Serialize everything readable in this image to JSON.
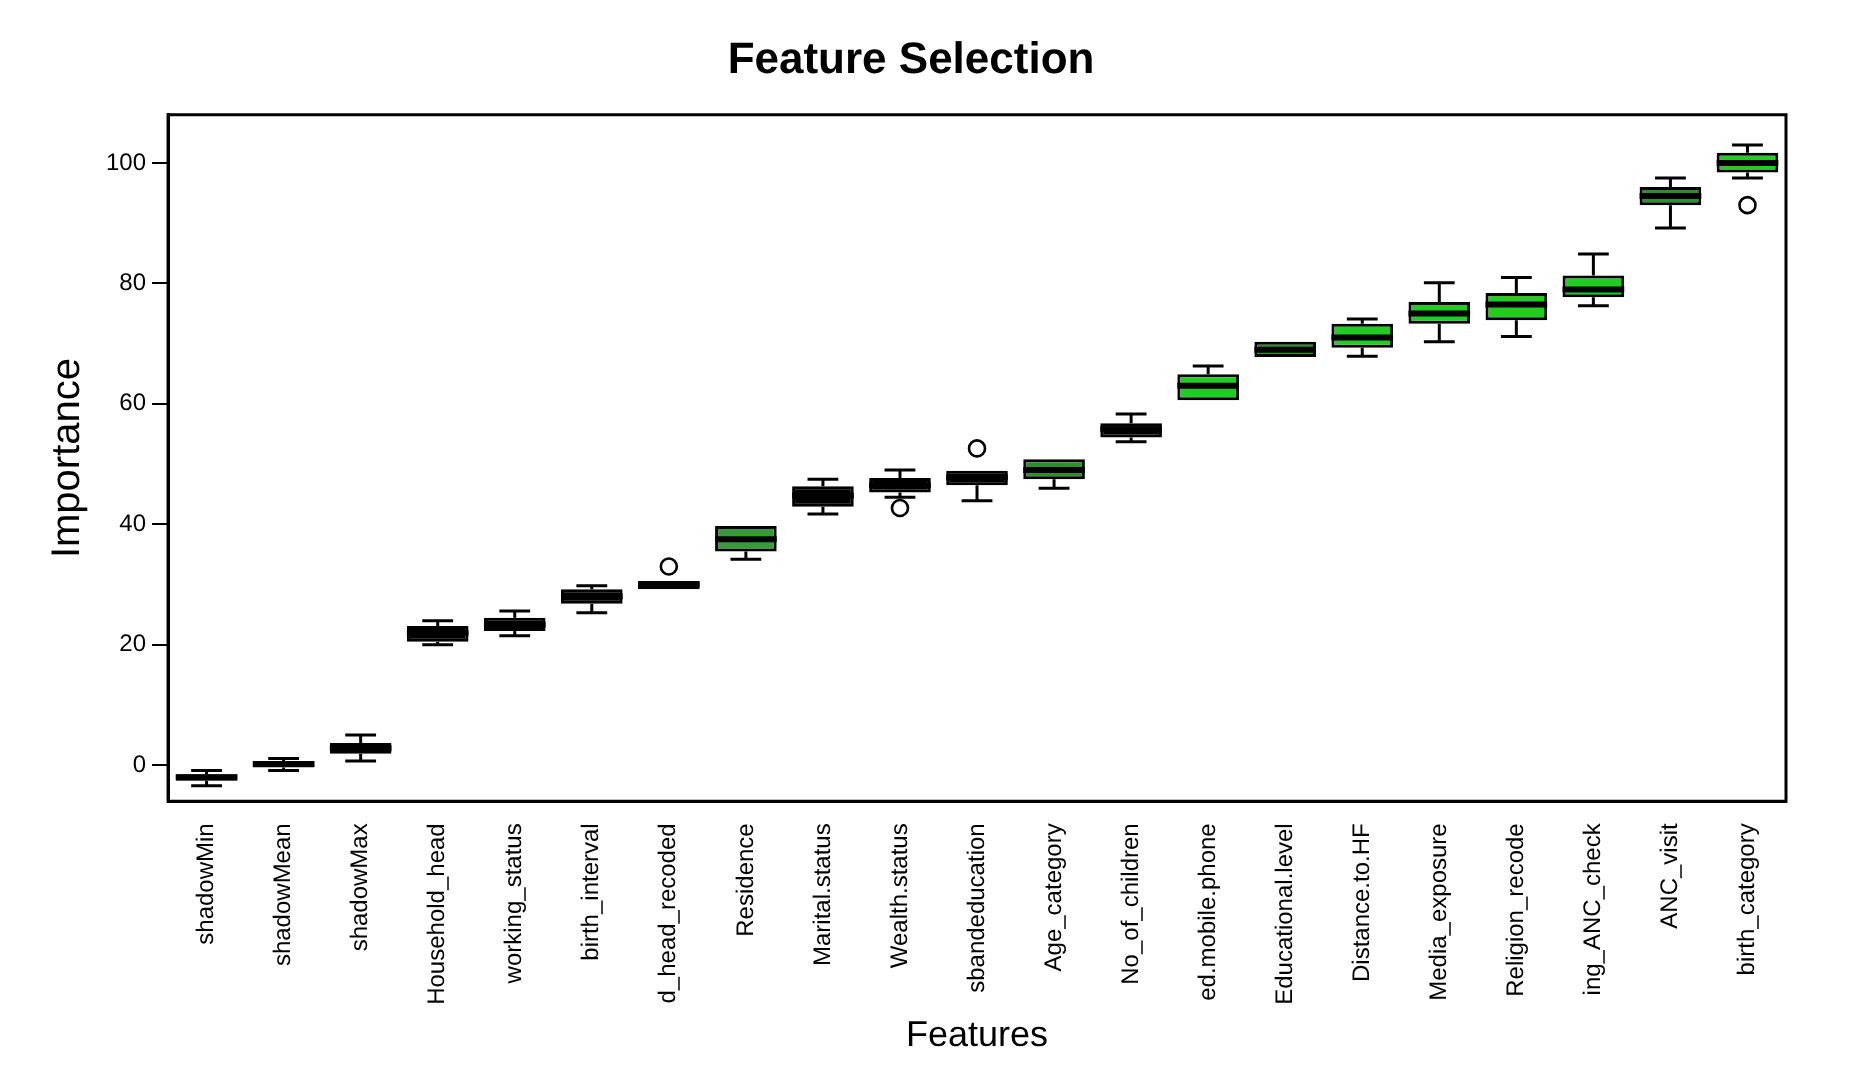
{
  "chart_data": {
    "type": "box",
    "title": "Feature Selection",
    "xlabel": "Features",
    "ylabel": "Importance",
    "categories": [
      "shadowMin",
      "shadowMean",
      "shadowMax",
      "Household_head",
      "working_status",
      "birth_interval",
      "d_head_recoded",
      "Residence",
      "Marital.status",
      "Wealth.status",
      "sbandeducation",
      "Age_category",
      "No_of_children",
      "ed.mobile.phone",
      "Educational.level",
      "Distance.to.HF",
      "Media_exposure",
      "Religion_recode",
      "ing_ANC_check",
      "ANC_visit",
      "birth_category"
    ],
    "colors": [
      "#000000",
      "#000000",
      "#000000",
      "#000000",
      "#000000",
      "#000000",
      "#000000",
      "#3a9a3a",
      "#000000",
      "#000000",
      "#000000",
      "#2f8f2f",
      "#000000",
      "#22cc22",
      "#2f8f2f",
      "#22cc22",
      "#22cc22",
      "#22cc22",
      "#22cc22",
      "#2f8f2f",
      "#22cc22"
    ],
    "boxes": [
      {
        "low": -3.4,
        "q1": -2.6,
        "median": -2,
        "q3": -1.5,
        "high": -0.9
      },
      {
        "low": -0.9,
        "q1": -0.4,
        "median": 0.2,
        "q3": 0.6,
        "high": 1.1
      },
      {
        "low": 0.7,
        "q1": 1.9,
        "median": 2.8,
        "q3": 3.7,
        "high": 5
      },
      {
        "low": 20,
        "q1": 20.5,
        "median": 22,
        "q3": 23.1,
        "high": 24
      },
      {
        "low": 21.5,
        "q1": 22.3,
        "median": 23.3,
        "q3": 24.5,
        "high": 25.6
      },
      {
        "low": 25.3,
        "q1": 26.8,
        "median": 28,
        "q3": 29.2,
        "high": 29.8
      },
      {
        "low": 29.2,
        "q1": 29.2,
        "median": 30,
        "q3": 30.6,
        "high": 30.6,
        "outliers": [
          33
        ]
      },
      {
        "low": 34.2,
        "q1": 35.5,
        "median": 37.5,
        "q3": 39.7,
        "high": 39.7
      },
      {
        "low": 41.7,
        "q1": 42.9,
        "median": 44.8,
        "q3": 46.3,
        "high": 47.5
      },
      {
        "low": 44.5,
        "q1": 45.3,
        "median": 46.5,
        "q3": 47.7,
        "high": 49,
        "outliers": [
          42.7
        ]
      },
      {
        "low": 43.9,
        "q1": 46.5,
        "median": 47.8,
        "q3": 48.9,
        "high": 48.9,
        "outliers": [
          52.6
        ]
      },
      {
        "low": 46,
        "q1": 47.5,
        "median": 49,
        "q3": 50.8,
        "high": 50.8
      },
      {
        "low": 53.7,
        "q1": 54.4,
        "median": 55.8,
        "q3": 56.8,
        "high": 58.3
      },
      {
        "low": 60.6,
        "q1": 60.6,
        "median": 63,
        "q3": 64.9,
        "high": 66.3
      },
      {
        "low": 67.8,
        "q1": 67.8,
        "median": 69,
        "q3": 70.3,
        "high": 70.3
      },
      {
        "low": 67.9,
        "q1": 69.3,
        "median": 71,
        "q3": 73.3,
        "high": 74.1
      },
      {
        "low": 70.3,
        "q1": 73.3,
        "median": 75,
        "q3": 76.9,
        "high": 80.1
      },
      {
        "low": 71.2,
        "q1": 73.9,
        "median": 76.5,
        "q3": 78.4,
        "high": 81
      },
      {
        "low": 76.3,
        "q1": 77.7,
        "median": 79,
        "q3": 81.3,
        "high": 84.9
      },
      {
        "low": 89.2,
        "q1": 93,
        "median": 94.5,
        "q3": 96,
        "high": 97.5
      },
      {
        "low": 97.5,
        "q1": 98.4,
        "median": 100,
        "q3": 101.7,
        "high": 103,
        "outliers": [
          93
        ]
      }
    ],
    "ylim": [
      -6,
      108
    ],
    "yticks": [
      0,
      20,
      40,
      60,
      80,
      100
    ],
    "grid": false,
    "legend": false
  }
}
